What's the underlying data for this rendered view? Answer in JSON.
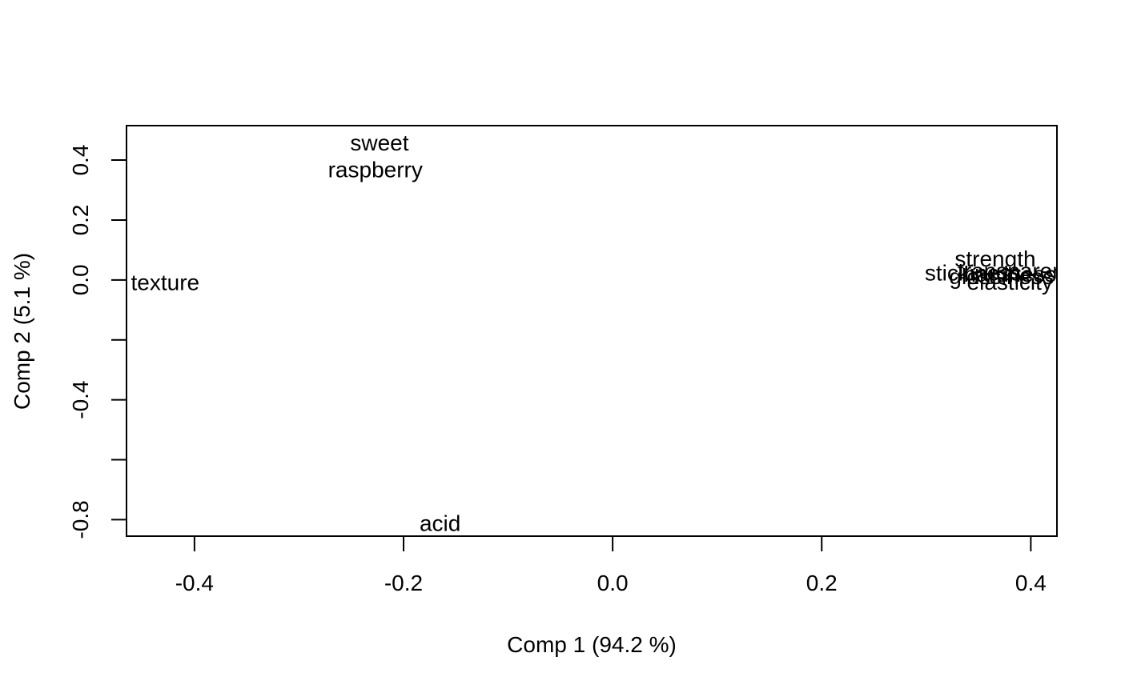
{
  "chart_data": {
    "type": "scatter",
    "title": "",
    "xlabel": "Comp 1 (94.2 %)",
    "ylabel": "Comp 2 (5.1 %)",
    "xlim": [
      -0.465,
      0.425
    ],
    "ylim": [
      -0.855,
      0.515
    ],
    "x_ticks": [
      -0.4,
      -0.2,
      0.0,
      0.2,
      0.4
    ],
    "x_tick_labels": [
      "-0.4",
      "-0.2",
      "0.0",
      "0.2",
      "0.4"
    ],
    "y_ticks": [
      -0.8,
      -0.6,
      -0.4,
      -0.2,
      0.0,
      0.2,
      0.4
    ],
    "y_tick_labels": [
      "-0.8",
      "",
      "-0.4",
      "",
      "0.0",
      "0.2",
      "0.4"
    ],
    "grid": false,
    "points": [
      {
        "label": "sweet",
        "x": -0.223,
        "y": 0.458
      },
      {
        "label": "raspberry",
        "x": -0.227,
        "y": 0.368
      },
      {
        "label": "texture",
        "x": -0.428,
        "y": -0.008
      },
      {
        "label": "acid",
        "x": -0.165,
        "y": -0.812
      },
      {
        "label": "strength",
        "x": 0.366,
        "y": 0.07
      },
      {
        "label": "stickiness",
        "x": 0.345,
        "y": 0.023
      },
      {
        "label": "transparency",
        "x": 0.392,
        "y": 0.03
      },
      {
        "label": "hardness",
        "x": 0.38,
        "y": 0.02
      },
      {
        "label": "glossiness",
        "x": 0.372,
        "y": 0.012
      },
      {
        "label": "elasticity",
        "x": 0.38,
        "y": -0.007
      }
    ]
  }
}
